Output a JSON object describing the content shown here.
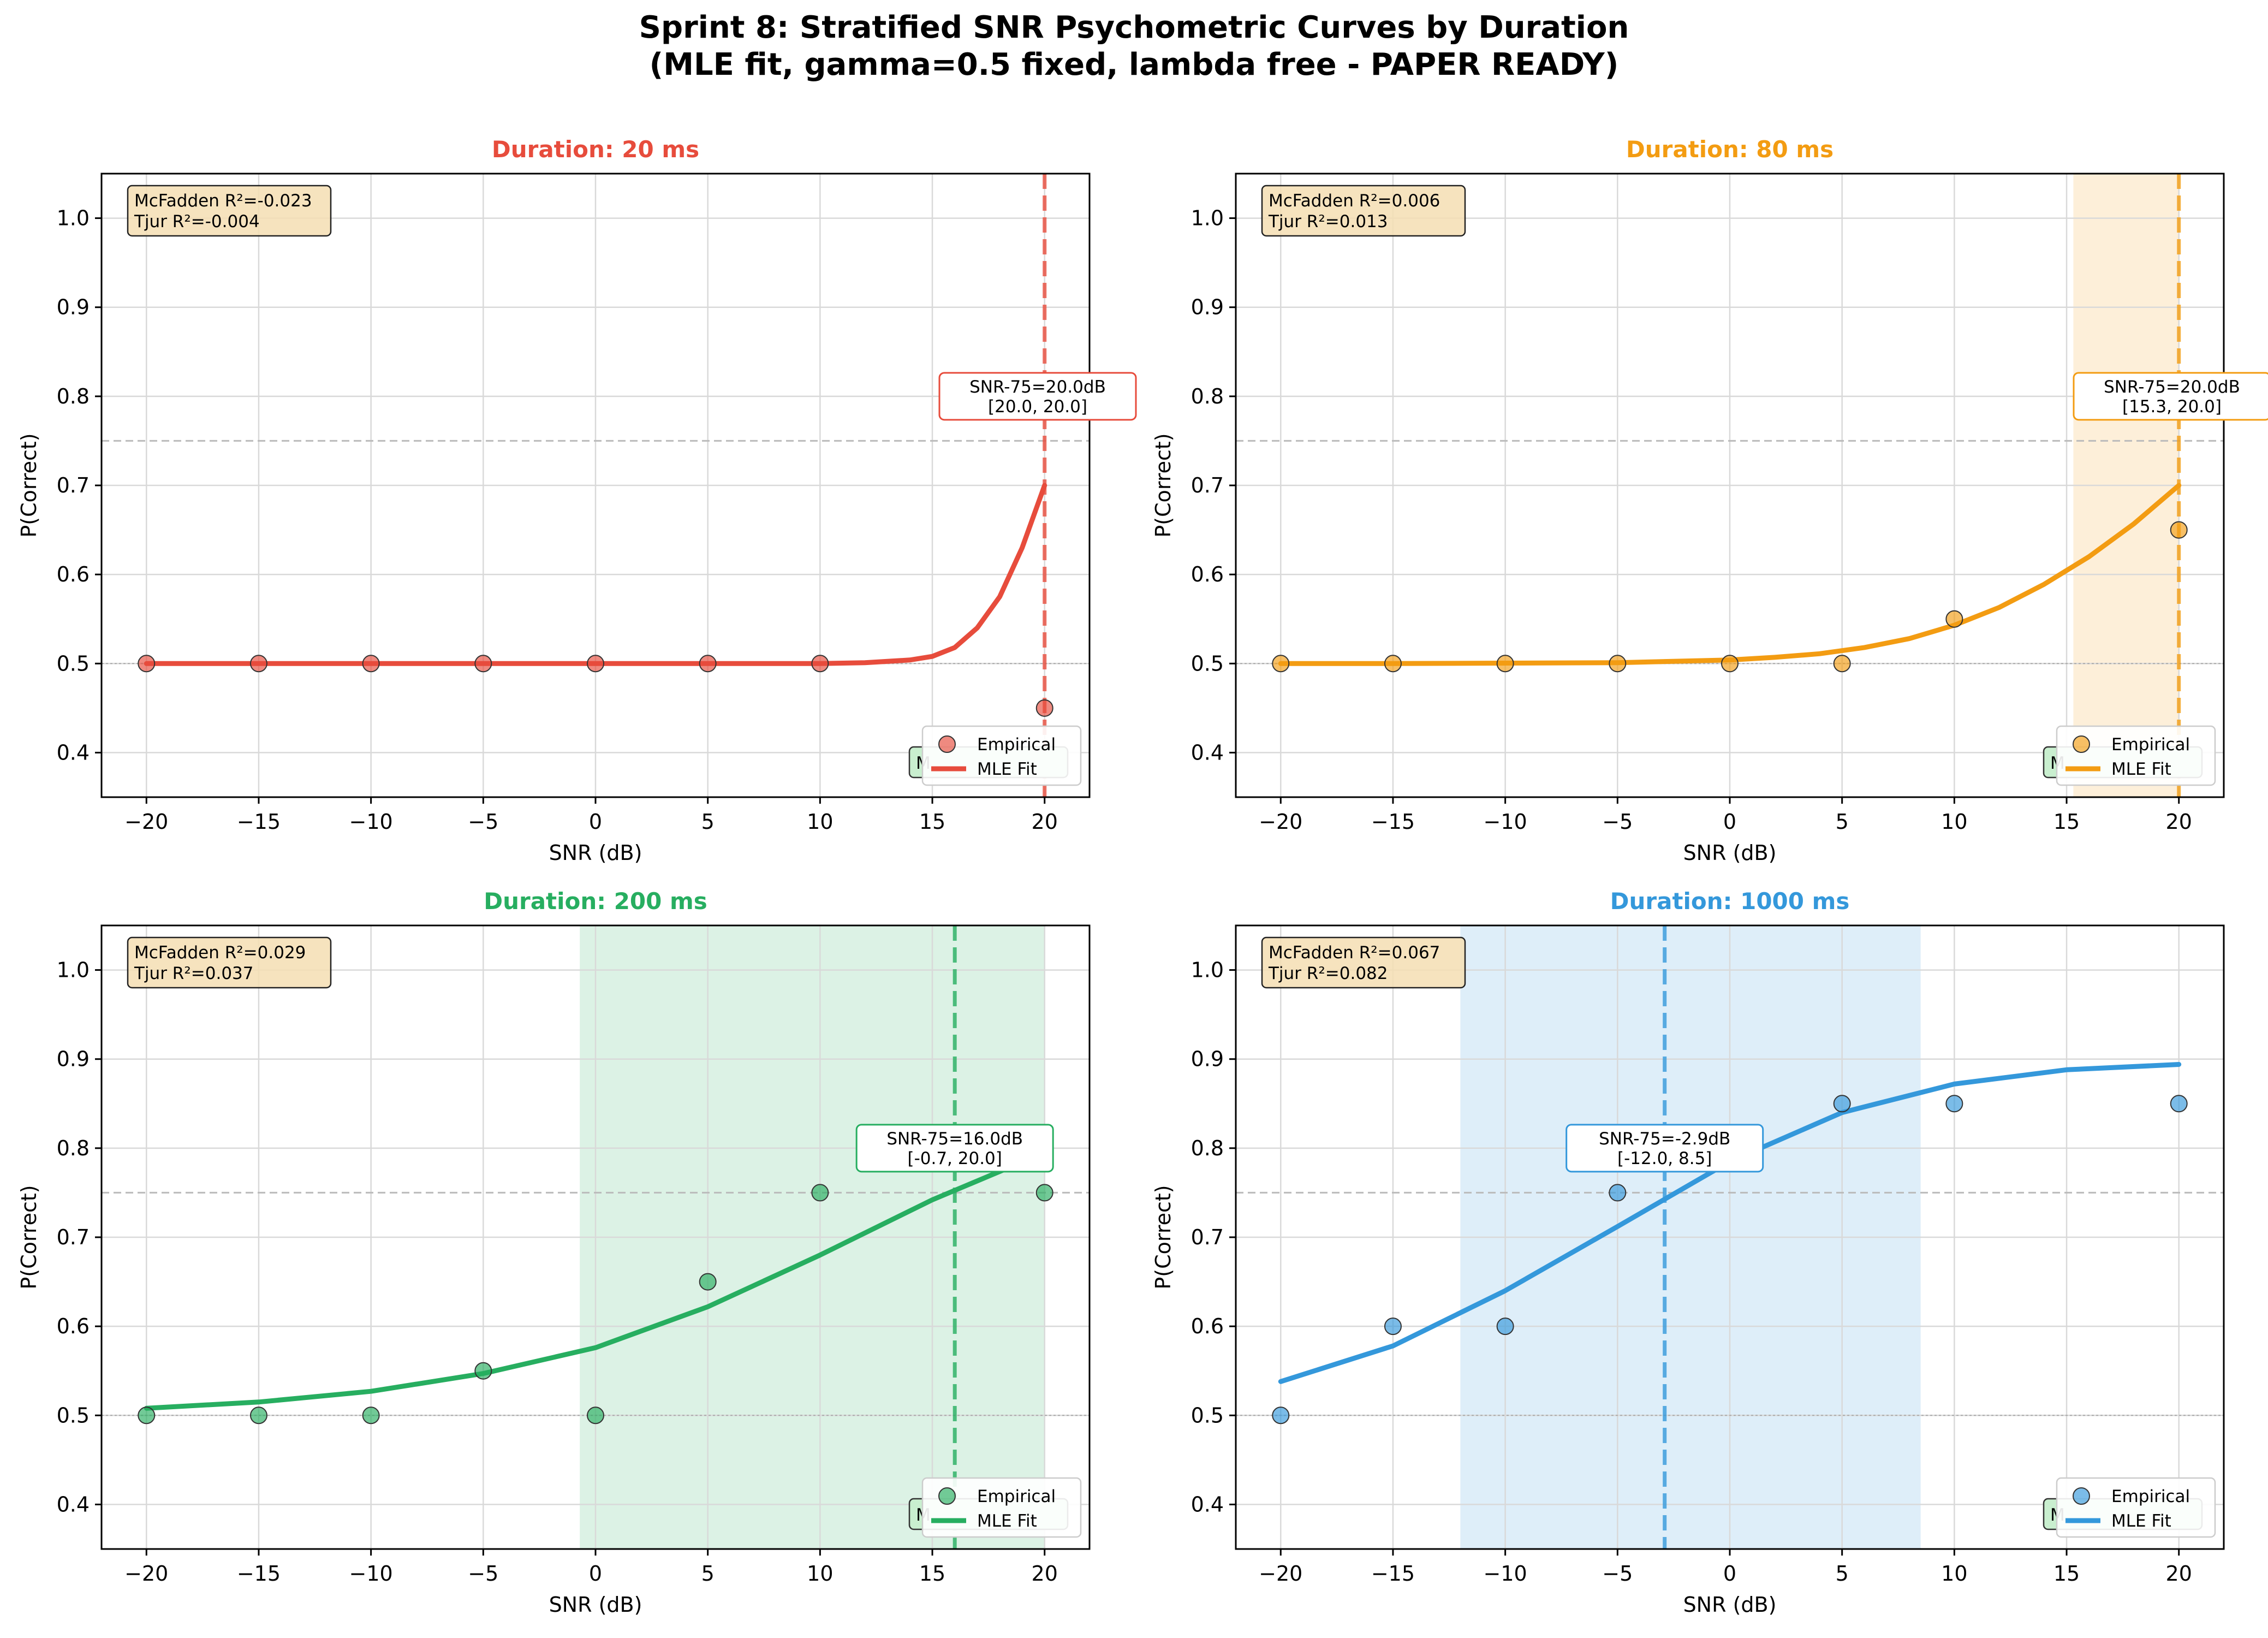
{
  "figure": {
    "title_line1": "Sprint 8: Stratified SNR Psychometric Curves by Duration",
    "title_line2": "(MLE fit, gamma=0.5 fixed, lambda free - PAPER READY)"
  },
  "chart_data": [
    {
      "type": "line",
      "title": "Duration: 20 ms",
      "color": "#e74c3c",
      "xlabel": "SNR (dB)",
      "ylabel": "P(Correct)",
      "xlim": [
        -22,
        22
      ],
      "ylim": [
        0.35,
        1.05
      ],
      "xticks": [
        -20,
        -15,
        -10,
        -5,
        0,
        5,
        10,
        15,
        20
      ],
      "xtick_labels": [
        "−20",
        "−15",
        "−10",
        "−5",
        "0",
        "5",
        "10",
        "15",
        "20"
      ],
      "yticks": [
        0.4,
        0.5,
        0.6,
        0.7,
        0.8,
        0.9,
        1.0
      ],
      "ytick_labels": [
        "0.4",
        "0.5",
        "0.6",
        "0.7",
        "0.8",
        "0.9",
        "1.0"
      ],
      "grid": true,
      "chance_level": 0.5,
      "threshold_level": 0.75,
      "empirical": {
        "x": [
          -20,
          -15,
          -10,
          -5,
          0,
          5,
          10,
          20
        ],
        "y": [
          0.5,
          0.5,
          0.5,
          0.5,
          0.5,
          0.5,
          0.5,
          0.45
        ]
      },
      "mle_fit": {
        "x": [
          -20,
          -15,
          -10,
          -5,
          0,
          5,
          10,
          12,
          14,
          15,
          16,
          17,
          18,
          19,
          20
        ],
        "y": [
          0.5,
          0.5,
          0.5,
          0.5,
          0.5,
          0.5,
          0.5,
          0.501,
          0.504,
          0.508,
          0.518,
          0.54,
          0.575,
          0.63,
          0.7
        ]
      },
      "snr75": 20.0,
      "ci": [
        20.0,
        20.0
      ],
      "threshold_label": "SNR-75=20.0dB",
      "ci_label": "[20.0, 20.0]",
      "stats_line1": "McFadden R²=-0.023",
      "stats_line2": "Tjur R²=-0.004",
      "hidden_label": "M",
      "legend": {
        "position": "lower right",
        "entries": [
          "Empirical",
          "MLE Fit"
        ]
      }
    },
    {
      "type": "line",
      "title": "Duration: 80 ms",
      "color": "#f39c12",
      "xlabel": "SNR (dB)",
      "ylabel": "P(Correct)",
      "xlim": [
        -22,
        22
      ],
      "ylim": [
        0.35,
        1.05
      ],
      "xticks": [
        -20,
        -15,
        -10,
        -5,
        0,
        5,
        10,
        15,
        20
      ],
      "xtick_labels": [
        "−20",
        "−15",
        "−10",
        "−5",
        "0",
        "5",
        "10",
        "15",
        "20"
      ],
      "yticks": [
        0.4,
        0.5,
        0.6,
        0.7,
        0.8,
        0.9,
        1.0
      ],
      "ytick_labels": [
        "0.4",
        "0.5",
        "0.6",
        "0.7",
        "0.8",
        "0.9",
        "1.0"
      ],
      "grid": true,
      "chance_level": 0.5,
      "threshold_level": 0.75,
      "empirical": {
        "x": [
          -20,
          -15,
          -10,
          -5,
          0,
          5,
          10,
          20
        ],
        "y": [
          0.5,
          0.5,
          0.5,
          0.5,
          0.5,
          0.5,
          0.55,
          0.65
        ]
      },
      "mle_fit": {
        "x": [
          -20,
          -15,
          -10,
          -5,
          0,
          2,
          4,
          6,
          8,
          10,
          12,
          14,
          16,
          18,
          20
        ],
        "y": [
          0.5,
          0.5,
          0.5005,
          0.501,
          0.504,
          0.507,
          0.511,
          0.518,
          0.528,
          0.543,
          0.563,
          0.589,
          0.62,
          0.657,
          0.7
        ]
      },
      "snr75": 20.0,
      "ci": [
        15.3,
        20.0
      ],
      "threshold_label": "SNR-75=20.0dB",
      "ci_label": "[15.3, 20.0]",
      "stats_line1": "McFadden R²=0.006",
      "stats_line2": "Tjur R²=0.013",
      "hidden_label": "M",
      "legend": {
        "position": "lower right",
        "entries": [
          "Empirical",
          "MLE Fit"
        ]
      }
    },
    {
      "type": "line",
      "title": "Duration: 200 ms",
      "color": "#27ae60",
      "xlabel": "SNR (dB)",
      "ylabel": "P(Correct)",
      "xlim": [
        -22,
        22
      ],
      "ylim": [
        0.35,
        1.05
      ],
      "xticks": [
        -20,
        -15,
        -10,
        -5,
        0,
        5,
        10,
        15,
        20
      ],
      "xtick_labels": [
        "−20",
        "−15",
        "−10",
        "−5",
        "0",
        "5",
        "10",
        "15",
        "20"
      ],
      "yticks": [
        0.4,
        0.5,
        0.6,
        0.7,
        0.8,
        0.9,
        1.0
      ],
      "ytick_labels": [
        "0.4",
        "0.5",
        "0.6",
        "0.7",
        "0.8",
        "0.9",
        "1.0"
      ],
      "grid": true,
      "chance_level": 0.5,
      "threshold_level": 0.75,
      "empirical": {
        "x": [
          -20,
          -15,
          -10,
          -5,
          0,
          5,
          10,
          20
        ],
        "y": [
          0.5,
          0.5,
          0.5,
          0.55,
          0.5,
          0.65,
          0.75,
          0.75
        ]
      },
      "mle_fit": {
        "x": [
          -20,
          -15,
          -10,
          -5,
          0,
          5,
          10,
          15,
          20
        ],
        "y": [
          0.508,
          0.515,
          0.527,
          0.547,
          0.576,
          0.622,
          0.68,
          0.742,
          0.795
        ]
      },
      "snr75": 16.0,
      "ci": [
        -0.7,
        20.0
      ],
      "threshold_label": "SNR-75=16.0dB",
      "ci_label": "[-0.7, 20.0]",
      "stats_line1": "McFadden R²=0.029",
      "stats_line2": "Tjur R²=0.037",
      "hidden_label": "M",
      "legend": {
        "position": "lower right",
        "entries": [
          "Empirical",
          "MLE Fit"
        ]
      }
    },
    {
      "type": "line",
      "title": "Duration: 1000 ms",
      "color": "#3498db",
      "xlabel": "SNR (dB)",
      "ylabel": "P(Correct)",
      "xlim": [
        -22,
        22
      ],
      "ylim": [
        0.35,
        1.05
      ],
      "xticks": [
        -20,
        -15,
        -10,
        -5,
        0,
        5,
        10,
        15,
        20
      ],
      "xtick_labels": [
        "−20",
        "−15",
        "−10",
        "−5",
        "0",
        "5",
        "10",
        "15",
        "20"
      ],
      "yticks": [
        0.4,
        0.5,
        0.6,
        0.7,
        0.8,
        0.9,
        1.0
      ],
      "ytick_labels": [
        "0.4",
        "0.5",
        "0.6",
        "0.7",
        "0.8",
        "0.9",
        "1.0"
      ],
      "grid": true,
      "chance_level": 0.5,
      "threshold_level": 0.75,
      "empirical": {
        "x": [
          -20,
          -15,
          -10,
          -5,
          5,
          10,
          20
        ],
        "y": [
          0.5,
          0.6,
          0.6,
          0.75,
          0.85,
          0.85,
          0.85
        ]
      },
      "mle_fit": {
        "x": [
          -20,
          -15,
          -10,
          -5,
          0,
          5,
          10,
          15,
          20
        ],
        "y": [
          0.538,
          0.578,
          0.64,
          0.712,
          0.785,
          0.84,
          0.872,
          0.888,
          0.894
        ]
      },
      "snr75": -2.9,
      "ci": [
        -12.0,
        8.5
      ],
      "threshold_label": "SNR-75=-2.9dB",
      "ci_label": "[-12.0, 8.5]",
      "stats_line1": "McFadden R²=0.067",
      "stats_line2": "Tjur R²=0.082",
      "hidden_label": "M",
      "legend": {
        "position": "lower right",
        "entries": [
          "Empirical",
          "MLE Fit"
        ]
      }
    }
  ]
}
